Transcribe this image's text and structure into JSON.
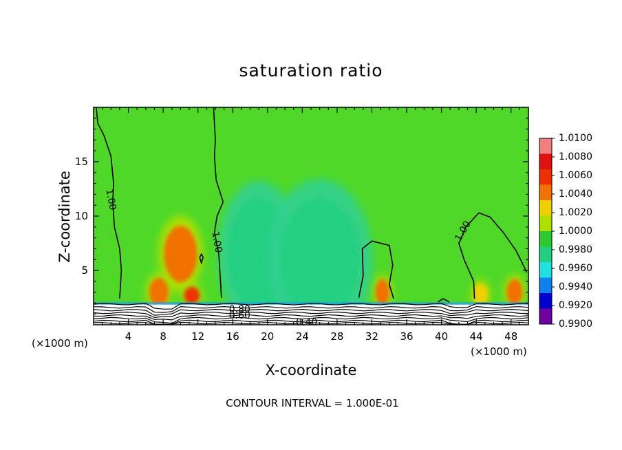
{
  "chart_data": {
    "type": "heatmap",
    "title": "saturation ratio",
    "xlabel": "X-coordinate",
    "ylabel": "Z-coordinate",
    "x_unit_left": "(×1000 m)",
    "x_unit_right": "(×1000 m)",
    "xlim": [
      0,
      50
    ],
    "ylim": [
      0,
      20
    ],
    "x_ticks": [
      "4",
      "8",
      "12",
      "16",
      "20",
      "24",
      "28",
      "32",
      "36",
      "40",
      "44",
      "48"
    ],
    "x_tick_values": [
      4,
      8,
      12,
      16,
      20,
      24,
      28,
      32,
      36,
      40,
      44,
      48
    ],
    "y_ticks": [
      "5",
      "10",
      "15"
    ],
    "y_tick_values": [
      5,
      10,
      15
    ],
    "colorbar": {
      "labels": [
        "1.0100",
        "1.0080",
        "1.0060",
        "1.0040",
        "1.0020",
        "1.0000",
        "0.9980",
        "0.9960",
        "0.9940",
        "0.9920",
        "0.9900"
      ],
      "colors": [
        "#f08080",
        "#e01010",
        "#f03000",
        "#f07000",
        "#f0d000",
        "#b0e000",
        "#30c830",
        "#20d080",
        "#20e0e0",
        "#1080f0",
        "#0000d0",
        "#7000a0"
      ]
    },
    "background_color": "#50d828",
    "contour_labels": [
      {
        "text": "1.00",
        "x": 2.0,
        "z": 11.5
      },
      {
        "text": "1.00",
        "x": 14.2,
        "z": 7.6
      },
      {
        "text": "1.00",
        "x": 42.5,
        "z": 8.6
      },
      {
        "text": "0.80",
        "x": 16.8,
        "z": 1.4
      },
      {
        "text": "0.60",
        "x": 16.8,
        "z": 0.8
      },
      {
        "text": "0.40",
        "x": 24.5,
        "z": 0.2
      }
    ],
    "features": [
      {
        "x": 10.0,
        "z": 6.5,
        "value": 1.0045,
        "rx": 1.9,
        "rz": 2.6
      },
      {
        "x": 7.5,
        "z": 3.0,
        "value": 1.006,
        "rx": 1.1,
        "rz": 1.3
      },
      {
        "x": 11.3,
        "z": 2.7,
        "value": 1.0065,
        "rx": 0.9,
        "rz": 0.8
      },
      {
        "x": 33.2,
        "z": 3.0,
        "value": 1.006,
        "rx": 0.8,
        "rz": 1.2
      },
      {
        "x": 48.4,
        "z": 3.0,
        "value": 1.005,
        "rx": 0.9,
        "rz": 1.2
      },
      {
        "x": 44.5,
        "z": 2.8,
        "value": 1.004,
        "rx": 0.8,
        "rz": 1.0
      },
      {
        "x": 20.2,
        "z": 3.0,
        "value": 0.9946,
        "rx": 1.4,
        "rz": 1.4
      },
      {
        "x": 19.0,
        "z": 6.5,
        "value": 0.997,
        "rx": 3.5,
        "rz": 5.0
      },
      {
        "x": 26.0,
        "z": 6.0,
        "value": 0.9975,
        "rx": 4.5,
        "rz": 5.5
      }
    ],
    "footer": "CONTOUR INTERVAL = 1.000E-01"
  }
}
